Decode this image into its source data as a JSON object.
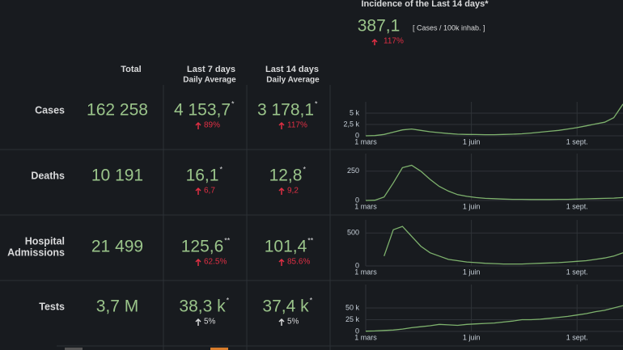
{
  "header": {
    "title": "Incidence of the Last 14 days*",
    "value": "387,1",
    "unit": "[ Cases / 100k inhab. ]",
    "delta": "117%"
  },
  "columns": {
    "total": "Total",
    "last7": "Last 7 days",
    "last7_sub": "Daily Average",
    "last14": "Last 14 days",
    "last14_sub": "Daily Average"
  },
  "rows": [
    {
      "label_lines": [
        "Cases"
      ],
      "total": "162 258",
      "last7": "4 153,7",
      "last7_mark": "*",
      "last7_delta": "89%",
      "last14": "3 178,1",
      "last14_mark": "*",
      "last14_delta": "117%",
      "delta_color": "#e02f44",
      "chart": {
        "type": "line",
        "color": "#7eb26d",
        "xlim": [
          0,
          224
        ],
        "ylim": [
          0,
          7500
        ],
        "yticks": [
          0,
          {
            "value": 2500,
            "label": "2,5 k"
          },
          {
            "value": 5000,
            "label": "5 k"
          }
        ],
        "xticks": [
          {
            "value": 0,
            "label": "1 mars"
          },
          {
            "value": 92,
            "label": "1 juin"
          },
          {
            "value": 184,
            "label": "1 sept."
          }
        ],
        "x": [
          0,
          8,
          16,
          24,
          32,
          40,
          48,
          56,
          64,
          72,
          80,
          88,
          96,
          104,
          112,
          120,
          128,
          136,
          144,
          152,
          160,
          168,
          176,
          184,
          192,
          200,
          208,
          216,
          224
        ],
        "values": [
          0,
          50,
          300,
          800,
          1300,
          1500,
          1200,
          900,
          700,
          500,
          350,
          300,
          280,
          250,
          250,
          300,
          350,
          450,
          600,
          800,
          1000,
          1200,
          1500,
          1800,
          2200,
          2600,
          3000,
          4000,
          7000
        ]
      }
    },
    {
      "label_lines": [
        "Deaths"
      ],
      "total": "10 191",
      "last7": "16,1",
      "last7_mark": "*",
      "last7_delta": "6,7",
      "last14": "12,8",
      "last14_mark": "*",
      "last14_delta": "9,2",
      "delta_color": "#e02f44",
      "chart": {
        "type": "line",
        "color": "#7eb26d",
        "xlim": [
          0,
          224
        ],
        "ylim": [
          0,
          400
        ],
        "yticks": [
          0,
          250
        ],
        "xticks": [
          {
            "value": 0,
            "label": "1 mars"
          },
          {
            "value": 92,
            "label": "1 juin"
          },
          {
            "value": 184,
            "label": "1 sept."
          }
        ],
        "x": [
          0,
          8,
          16,
          24,
          32,
          40,
          48,
          56,
          64,
          72,
          80,
          88,
          96,
          104,
          112,
          120,
          128,
          136,
          144,
          152,
          160,
          168,
          176,
          184,
          192,
          200,
          208,
          216,
          224
        ],
        "values": [
          0,
          2,
          30,
          150,
          280,
          300,
          250,
          180,
          120,
          80,
          50,
          35,
          25,
          18,
          15,
          12,
          10,
          10,
          8,
          8,
          8,
          10,
          10,
          12,
          14,
          16,
          18,
          20,
          25
        ]
      }
    },
    {
      "label_lines": [
        "Hospital",
        "Admissions"
      ],
      "total": "21 499",
      "last7": "125,6",
      "last7_mark": "**",
      "last7_delta": "62.5%",
      "last14": "101,4",
      "last14_mark": "**",
      "last14_delta": "85.6%",
      "delta_color": "#e02f44",
      "chart": {
        "type": "line",
        "color": "#7eb26d",
        "xlim": [
          0,
          224
        ],
        "ylim": [
          0,
          700
        ],
        "yticks": [
          0,
          500
        ],
        "xticks": [
          {
            "value": 0,
            "label": "1 mars"
          },
          {
            "value": 92,
            "label": "1 juin"
          },
          {
            "value": 184,
            "label": "1 sept."
          }
        ],
        "x": [
          0,
          8,
          16,
          24,
          32,
          40,
          48,
          56,
          64,
          72,
          80,
          88,
          96,
          104,
          112,
          120,
          128,
          136,
          144,
          152,
          160,
          168,
          176,
          184,
          192,
          200,
          208,
          216,
          224
        ],
        "values": [
          null,
          null,
          150,
          550,
          600,
          450,
          300,
          200,
          150,
          100,
          80,
          60,
          50,
          40,
          35,
          30,
          30,
          30,
          35,
          40,
          45,
          50,
          60,
          70,
          80,
          100,
          120,
          150,
          200
        ]
      }
    },
    {
      "label_lines": [
        "Tests"
      ],
      "total": "3,7 M",
      "last7": "38,3 k",
      "last7_mark": "*",
      "last7_delta": "5%",
      "last14": "37,4 k",
      "last14_mark": "*",
      "last14_delta": "5%",
      "delta_color": "#d8d9da",
      "chart": {
        "type": "line",
        "color": "#7eb26d",
        "xlim": [
          0,
          224
        ],
        "ylim": [
          0,
          100000
        ],
        "yticks": [
          0,
          {
            "value": 25000,
            "label": "25 k"
          },
          {
            "value": 50000,
            "label": "50 k"
          }
        ],
        "xticks": [
          {
            "value": 0,
            "label": "1 mars"
          },
          {
            "value": 92,
            "label": "1 juin"
          },
          {
            "value": 184,
            "label": "1 sept."
          }
        ],
        "x": [
          0,
          8,
          16,
          24,
          32,
          40,
          48,
          56,
          64,
          72,
          80,
          88,
          96,
          104,
          112,
          120,
          128,
          136,
          144,
          152,
          160,
          168,
          176,
          184,
          192,
          200,
          208,
          216,
          224
        ],
        "values": [
          500,
          1000,
          2000,
          3000,
          5000,
          8000,
          10000,
          12000,
          15000,
          14000,
          13000,
          15000,
          16000,
          17000,
          18000,
          20000,
          22000,
          25000,
          25000,
          26000,
          28000,
          30000,
          32000,
          35000,
          38000,
          42000,
          45000,
          50000,
          55000
        ]
      }
    }
  ]
}
